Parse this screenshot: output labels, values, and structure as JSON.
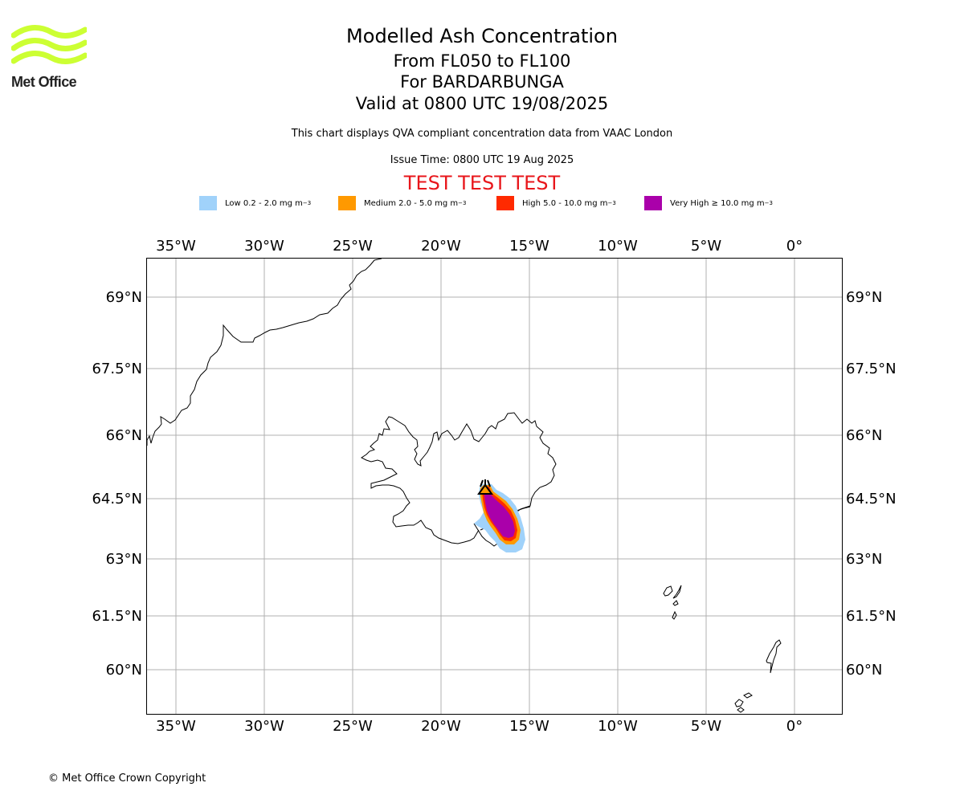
{
  "brand": {
    "name": "Met Office",
    "logo_color": "#ccff33"
  },
  "header": {
    "title": "Modelled Ash Concentration",
    "levels": "From FL050 to FL100",
    "volcano": "For BARDARBUNGA",
    "valid": "Valid at 0800 UTC 19/08/2025",
    "description": "This chart displays QVA compliant concentration data from VAAC London",
    "issue_time": "Issue Time: 0800 UTC 19 Aug 2025",
    "test_banner": "TEST TEST TEST",
    "test_color": "#e8161b"
  },
  "legend": [
    {
      "label": "Low 0.2 - 2.0 mg m",
      "sup": "−3",
      "color": "#a0d2fa"
    },
    {
      "label": "Medium 2.0 - 5.0 mg m",
      "sup": "−3",
      "color": "#ff9900"
    },
    {
      "label": "High 5.0 - 10.0 mg m",
      "sup": "−3",
      "color": "#ff2a00"
    },
    {
      "label": "Very High ≥ 10.0 mg m",
      "sup": "−3",
      "color": "#aa00aa"
    }
  ],
  "map": {
    "lon_range": [
      -36.7,
      2.7
    ],
    "lat_range": [
      59.0,
      69.9
    ],
    "lon_ticks": [
      {
        "value": -35,
        "label": "35°W"
      },
      {
        "value": -30,
        "label": "30°W"
      },
      {
        "value": -25,
        "label": "25°W"
      },
      {
        "value": -20,
        "label": "20°W"
      },
      {
        "value": -15,
        "label": "15°W"
      },
      {
        "value": -10,
        "label": "10°W"
      },
      {
        "value": -5,
        "label": "5°W"
      },
      {
        "value": 0,
        "label": "0°"
      }
    ],
    "lat_ticks": [
      {
        "value": 69,
        "label": "69°N"
      },
      {
        "value": 67.5,
        "label": "67.5°N"
      },
      {
        "value": 66,
        "label": "66°N"
      },
      {
        "value": 64.5,
        "label": "64.5°N"
      },
      {
        "value": 63,
        "label": "63°N"
      },
      {
        "value": 61.5,
        "label": "61.5°N"
      },
      {
        "value": 60,
        "label": "60°N"
      }
    ],
    "grid": true,
    "volcano_marker": {
      "lon": -17.5,
      "lat": 64.64,
      "icon": "volcano-icon"
    }
  },
  "footer": {
    "copyright": "© Met Office Crown Copyright"
  }
}
